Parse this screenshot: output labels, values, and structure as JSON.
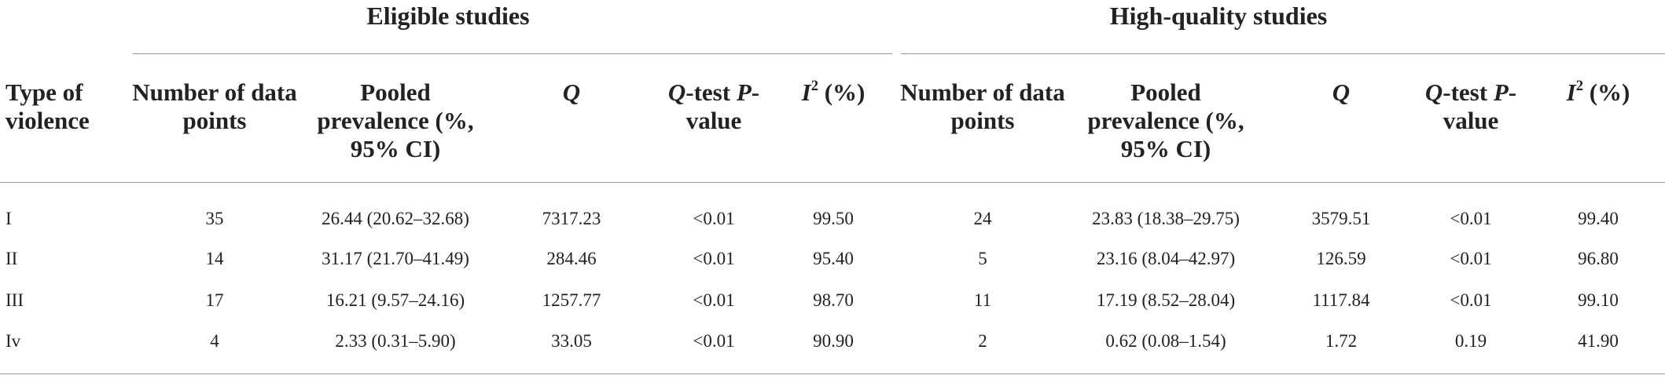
{
  "table": {
    "groups": [
      "Eligible studies",
      "High-quality studies"
    ],
    "header": [
      [
        {
          "text": "Type of violence"
        }
      ],
      [
        {
          "text": "Number of data points"
        }
      ],
      [
        {
          "text": "Pooled prevalence (%, 95% CI)"
        }
      ],
      [
        {
          "text": "Q",
          "style": "italic"
        }
      ],
      [
        {
          "text": "Q",
          "style": "italic"
        },
        {
          "text": "-test "
        },
        {
          "text": "P",
          "style": "italic"
        },
        {
          "text": "-value"
        }
      ],
      [
        {
          "text": "I",
          "style": "italic"
        },
        {
          "text": "2",
          "style": "sup"
        },
        {
          "text": " (%)"
        }
      ],
      [
        {
          "text": "Number of data points"
        }
      ],
      [
        {
          "text": "Pooled prevalence (%, 95% CI)"
        }
      ],
      [
        {
          "text": "Q",
          "style": "italic"
        }
      ],
      [
        {
          "text": "Q",
          "style": "italic"
        },
        {
          "text": "-test "
        },
        {
          "text": "P",
          "style": "italic"
        },
        {
          "text": "-value"
        }
      ],
      [
        {
          "text": "I",
          "style": "italic"
        },
        {
          "text": "2",
          "style": "sup"
        },
        {
          "text": " (%)"
        }
      ]
    ],
    "rows": [
      [
        "I",
        "35",
        "26.44 (20.62–32.68)",
        "7317.23",
        "<0.01",
        "99.50",
        "24",
        "23.83 (18.38–29.75)",
        "3579.51",
        "<0.01",
        "99.40"
      ],
      [
        "II",
        "14",
        "31.17 (21.70–41.49)",
        "284.46",
        "<0.01",
        "95.40",
        "5",
        "23.16 (8.04–42.97)",
        "126.59",
        "<0.01",
        "96.80"
      ],
      [
        "III",
        "17",
        "16.21 (9.57–24.16)",
        "1257.77",
        "<0.01",
        "98.70",
        "11",
        "17.19 (8.52–28.04)",
        "1117.84",
        "<0.01",
        "99.10"
      ],
      [
        "Iv",
        "4",
        "2.33 (0.31–5.90)",
        "33.05",
        "<0.01",
        "90.90",
        "2",
        "0.62 (0.08–1.54)",
        "1.72",
        "0.19",
        "41.90"
      ]
    ]
  }
}
